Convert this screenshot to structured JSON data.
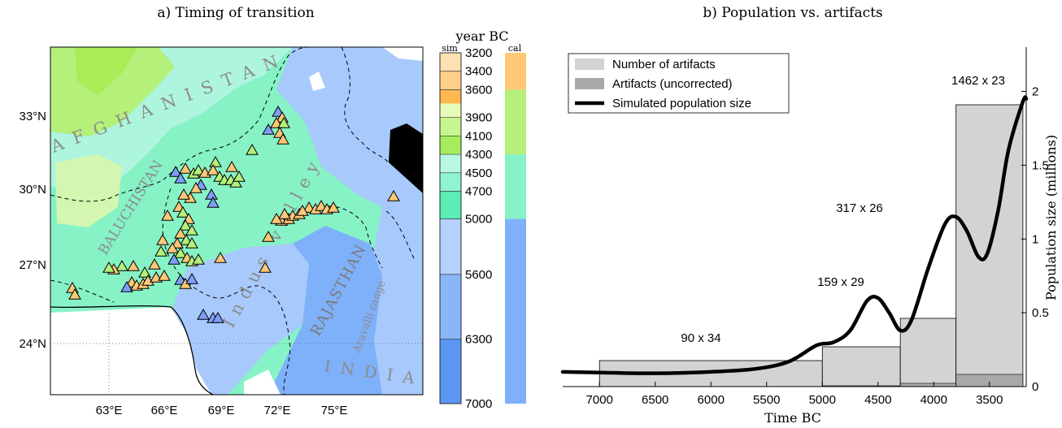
{
  "chart_data": [
    {
      "type": "map",
      "title": "a) Timing of transition",
      "x_ticks": [
        "63°E",
        "66°E",
        "69°E",
        "72°E",
        "75°E"
      ],
      "y_ticks": [
        "33°N",
        "30°N",
        "27°N",
        "24°N"
      ],
      "map_labels": [
        "AFGHANISTAN",
        "BALUCHISTAN",
        "Indus valley",
        "RAJASTHAN",
        "Aravalli range",
        "INDIA"
      ],
      "colorbar": {
        "title": "year BC",
        "left_label": "sim",
        "right_label": "cal",
        "ticks": [
          "3200",
          "3400",
          "3600",
          "3900",
          "4100",
          "4300",
          "4500",
          "4700",
          "5000",
          "5600",
          "6300",
          "7000"
        ],
        "colors": {
          "orange": "#ffc877",
          "green": "#b5f07a",
          "teal": "#86f2c6",
          "blue": "#7fb0fa"
        }
      }
    },
    {
      "type": "bar",
      "title": "b) Population vs. artifacts",
      "xlabel": "Time BC",
      "ylabel": "Population size (millions)",
      "x_ticks": [
        7000,
        6500,
        6000,
        5500,
        5000,
        4500,
        4000,
        3500
      ],
      "y_ticks": [
        0,
        0.5,
        1,
        1.5,
        2
      ],
      "legend": [
        "Number of artifacts",
        "Artifacts (uncorrected)",
        "Simulated population size"
      ],
      "bars": [
        {
          "from": 7000,
          "to": 5000,
          "label": "90 x 34"
        },
        {
          "from": 5000,
          "to": 4300,
          "label": "159 x 29"
        },
        {
          "from": 4300,
          "to": 3800,
          "label": "317 x 26"
        },
        {
          "from": 3800,
          "to": 3200,
          "label": "1462 x 23"
        }
      ],
      "colors": {
        "corrected": "#d3d3d3",
        "uncorrected": "#a9a9a9",
        "line": "#000000"
      }
    }
  ]
}
